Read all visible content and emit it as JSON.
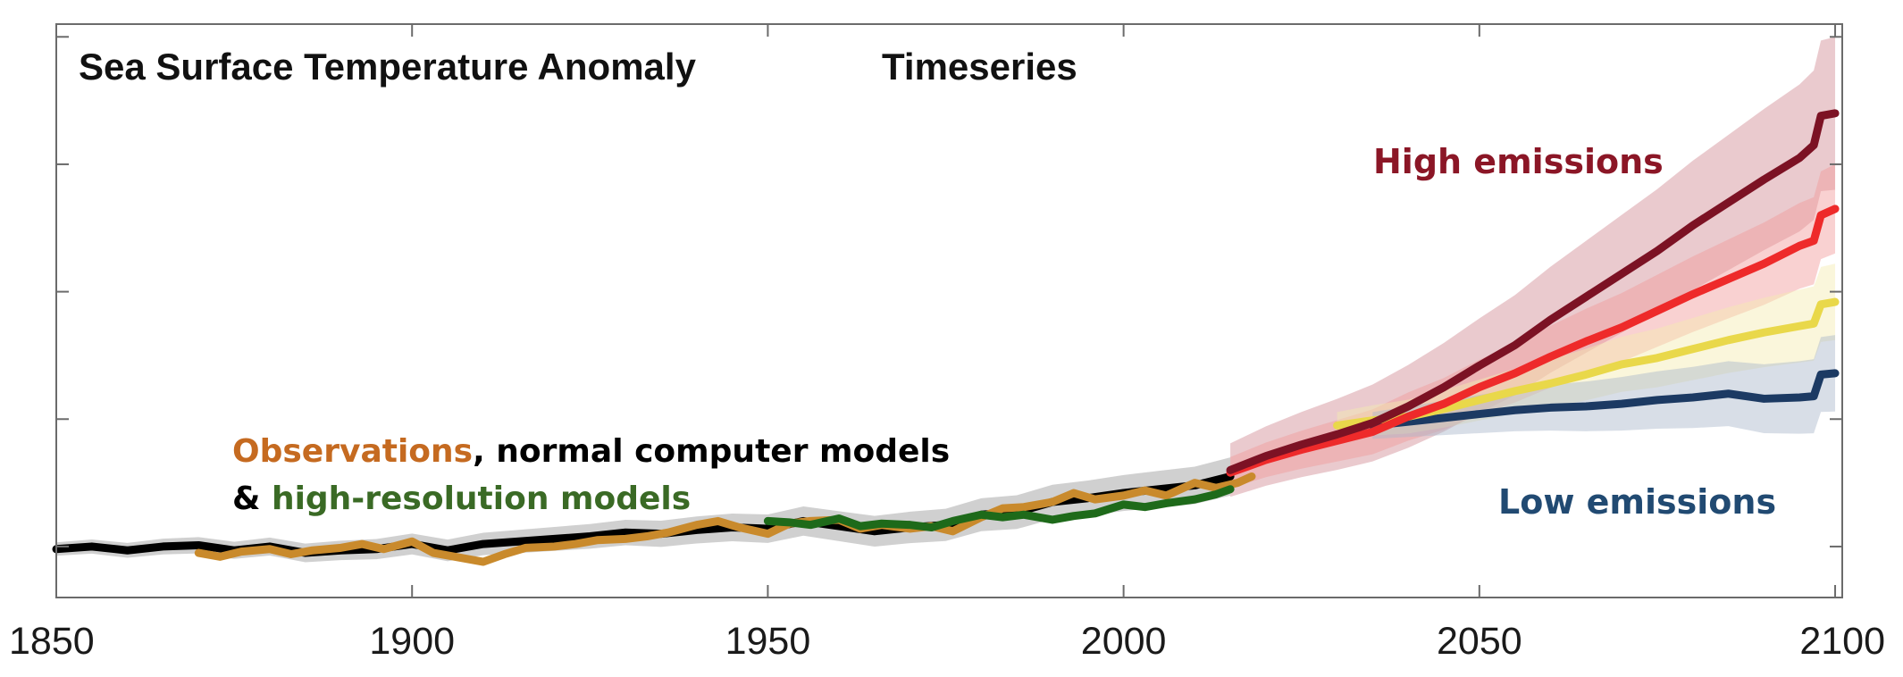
{
  "chart_data": {
    "type": "line",
    "title": "Sea Surface Temperature Anomaly",
    "title_suffix": "Timeseries",
    "xlim": [
      1850,
      2101
    ],
    "ylim": [
      -0.4,
      4.1
    ],
    "grid": false,
    "x_ticks": [
      1850,
      1900,
      1950,
      2000,
      2050,
      2100
    ],
    "y_ticks": [
      0,
      1,
      2,
      3,
      4
    ],
    "y_tick_labels_shown": false,
    "series": [
      {
        "name": "normal computer models",
        "color": "#000000",
        "band_color": "#c8c8c8",
        "band_halfwidth": 0.15,
        "x": [
          1850,
          1855,
          1860,
          1865,
          1870,
          1875,
          1880,
          1885,
          1890,
          1895,
          1900,
          1905,
          1910,
          1915,
          1920,
          1925,
          1930,
          1935,
          1940,
          1945,
          1950,
          1955,
          1960,
          1965,
          1970,
          1975,
          1980,
          1985,
          1990,
          1995,
          2000,
          2005,
          2010,
          2015
        ],
        "y": [
          -0.02,
          0.0,
          -0.03,
          0.0,
          0.01,
          -0.03,
          0.0,
          -0.05,
          -0.03,
          -0.02,
          0.02,
          -0.03,
          0.02,
          0.04,
          0.06,
          0.08,
          0.11,
          0.1,
          0.13,
          0.15,
          0.14,
          0.2,
          0.16,
          0.12,
          0.15,
          0.17,
          0.25,
          0.27,
          0.35,
          0.38,
          0.42,
          0.45,
          0.48,
          0.55
        ]
      },
      {
        "name": "Observations",
        "color": "#c98a2c",
        "x": [
          1870,
          1873,
          1876,
          1880,
          1883,
          1886,
          1890,
          1893,
          1896,
          1900,
          1903,
          1906,
          1910,
          1913,
          1916,
          1920,
          1923,
          1926,
          1930,
          1933,
          1936,
          1940,
          1943,
          1946,
          1950,
          1953,
          1956,
          1960,
          1963,
          1966,
          1970,
          1973,
          1976,
          1980,
          1983,
          1986,
          1990,
          1993,
          1996,
          2000,
          2003,
          2006,
          2010,
          2013,
          2016,
          2018
        ],
        "y": [
          -0.05,
          -0.08,
          -0.04,
          -0.02,
          -0.06,
          -0.03,
          -0.01,
          0.02,
          -0.02,
          0.04,
          -0.05,
          -0.08,
          -0.12,
          -0.06,
          -0.01,
          0.0,
          0.02,
          0.05,
          0.06,
          0.08,
          0.11,
          0.17,
          0.2,
          0.15,
          0.1,
          0.18,
          0.2,
          0.21,
          0.14,
          0.17,
          0.14,
          0.16,
          0.12,
          0.23,
          0.3,
          0.31,
          0.35,
          0.42,
          0.37,
          0.4,
          0.44,
          0.4,
          0.5,
          0.46,
          0.5,
          0.55
        ]
      },
      {
        "name": "high-resolution models",
        "color": "#1e6a1a",
        "x": [
          1950,
          1953,
          1956,
          1960,
          1963,
          1966,
          1970,
          1973,
          1976,
          1980,
          1983,
          1986,
          1990,
          1993,
          1996,
          2000,
          2003,
          2006,
          2010,
          2013,
          2015
        ],
        "y": [
          0.2,
          0.19,
          0.17,
          0.22,
          0.16,
          0.18,
          0.17,
          0.15,
          0.2,
          0.25,
          0.23,
          0.25,
          0.21,
          0.24,
          0.26,
          0.33,
          0.31,
          0.34,
          0.37,
          0.41,
          0.45
        ]
      },
      {
        "name": "High emissions",
        "color": "#7c1224",
        "band_color": "#d08a93",
        "band_halfwidth": 0.6,
        "x": [
          2015,
          2020,
          2025,
          2030,
          2035,
          2040,
          2045,
          2050,
          2055,
          2060,
          2065,
          2070,
          2075,
          2080,
          2085,
          2090,
          2095,
          2097,
          2098,
          2100
        ],
        "y": [
          0.6,
          0.71,
          0.8,
          0.88,
          0.97,
          1.1,
          1.25,
          1.42,
          1.58,
          1.78,
          1.96,
          2.14,
          2.32,
          2.52,
          2.7,
          2.88,
          3.05,
          3.15,
          3.38,
          3.4
        ]
      },
      {
        "name": "",
        "color": "#ee2a2a",
        "band_color": "#f29a9a",
        "band_halfwidth": 0.35,
        "x": [
          2015,
          2020,
          2025,
          2030,
          2035,
          2040,
          2045,
          2050,
          2055,
          2060,
          2065,
          2070,
          2075,
          2080,
          2085,
          2090,
          2095,
          2097,
          2098,
          2100
        ],
        "y": [
          0.58,
          0.68,
          0.76,
          0.83,
          0.9,
          1.02,
          1.12,
          1.25,
          1.36,
          1.49,
          1.61,
          1.72,
          1.85,
          1.98,
          2.1,
          2.22,
          2.36,
          2.4,
          2.6,
          2.65
        ]
      },
      {
        "name": "",
        "color": "#e9d84a",
        "band_color": "#f3ecb0",
        "band_halfwidth": 0.3,
        "x": [
          2030,
          2035,
          2040,
          2045,
          2050,
          2055,
          2060,
          2065,
          2070,
          2075,
          2080,
          2085,
          2090,
          2095,
          2097,
          2098,
          2100
        ],
        "y": [
          0.95,
          0.99,
          1.02,
          1.08,
          1.15,
          1.22,
          1.28,
          1.35,
          1.43,
          1.48,
          1.55,
          1.62,
          1.68,
          1.73,
          1.75,
          1.9,
          1.92
        ]
      },
      {
        "name": "Low emissions",
        "color": "#1c3a63",
        "band_color": "#a9b6c9",
        "band_halfwidth": 0.3,
        "x": [
          2035,
          2040,
          2045,
          2050,
          2055,
          2060,
          2065,
          2070,
          2075,
          2080,
          2085,
          2090,
          2095,
          2097,
          2098,
          2100
        ],
        "y": [
          0.95,
          0.98,
          1.01,
          1.04,
          1.07,
          1.09,
          1.1,
          1.12,
          1.15,
          1.17,
          1.2,
          1.16,
          1.17,
          1.18,
          1.35,
          1.36
        ]
      }
    ],
    "annotations": {
      "obs_word": "Observations",
      "obs_rest": ", normal computer models",
      "hires_prefix": "& ",
      "hires_word": "high-resolution models",
      "high": "High emissions",
      "low": "Low emissions"
    }
  }
}
